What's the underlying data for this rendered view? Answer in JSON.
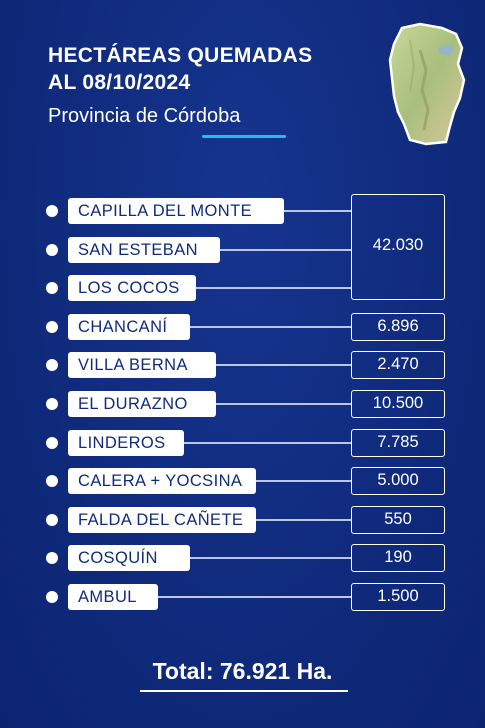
{
  "header": {
    "title_line1": "HECTÁREAS QUEMADAS",
    "title_line2": "AL 08/10/2024",
    "subtitle": "Provincia de Córdoba"
  },
  "chart_data": {
    "type": "table",
    "rows": [
      {
        "label": "CAPILLA DEL MONTE",
        "value": null,
        "group": 0
      },
      {
        "label": "SAN ESTEBAN",
        "value": null,
        "group": 0
      },
      {
        "label": "LOS COCOS",
        "value": null,
        "group": 0
      },
      {
        "label": "CHANCANÍ",
        "value": "6.896"
      },
      {
        "label": "VILLA BERNA",
        "value": "2.470"
      },
      {
        "label": "EL DURAZNO",
        "value": "10.500"
      },
      {
        "label": "LINDEROS",
        "value": "7.785"
      },
      {
        "label": "CALERA + YOCSINA",
        "value": "5.000"
      },
      {
        "label": "FALDA DEL CAÑETE",
        "value": "550"
      },
      {
        "label": "COSQUÍN",
        "value": "190"
      },
      {
        "label": "AMBUL",
        "value": "1.500"
      }
    ],
    "groups": [
      {
        "value": "42.030",
        "members": [
          "CAPILLA DEL MONTE",
          "SAN ESTEBAN",
          "LOS COCOS"
        ]
      }
    ],
    "total": "Total: 76.921 Ha.",
    "colors": {
      "background": "#102b7d",
      "label_bg": "#ffffff",
      "accent": "#2bb6ee"
    }
  }
}
